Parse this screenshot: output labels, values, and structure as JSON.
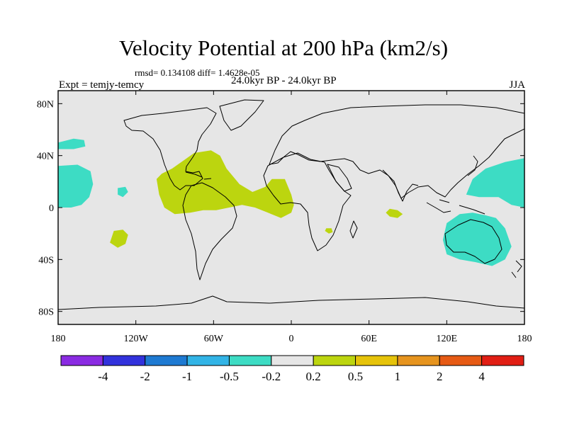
{
  "figure": {
    "title": "Velocity Potential at 200 hPa (km2/s)",
    "diagnostics": "rmsd= 0.134108 diff= 1.4628e-05",
    "period": "24.0kyr BP - 24.0kyr BP",
    "experiment": "Expt = temjy-temcy",
    "season": "JJA"
  },
  "map": {
    "projection": "cylindrical-equidistant",
    "lon_range": [
      -180,
      180
    ],
    "lat_range": [
      -90,
      90
    ],
    "lat_ticks": [
      {
        "value": 80,
        "label": "80N"
      },
      {
        "value": 40,
        "label": "40N"
      },
      {
        "value": 0,
        "label": "0"
      },
      {
        "value": -40,
        "label": "40S"
      },
      {
        "value": -80,
        "label": "80S"
      }
    ],
    "lon_ticks": [
      {
        "value": -180,
        "label": "180"
      },
      {
        "value": -120,
        "label": "120W"
      },
      {
        "value": -60,
        "label": "60W"
      },
      {
        "value": 0,
        "label": "0"
      },
      {
        "value": 60,
        "label": "60E"
      },
      {
        "value": 120,
        "label": "120E"
      },
      {
        "value": 180,
        "label": "180"
      }
    ],
    "background_color": "#e6e6e6",
    "coastline_color": "#000000",
    "anomaly_regions": [
      {
        "name": "N Pacific small",
        "sign": "negative",
        "color": "#3ddcc4",
        "outline": [
          [
            -180,
            50
          ],
          [
            -168,
            53
          ],
          [
            -160,
            52
          ],
          [
            -159,
            47
          ],
          [
            -168,
            45
          ],
          [
            -180,
            45
          ]
        ]
      },
      {
        "name": "E Pacific band",
        "sign": "negative",
        "color": "#3ddcc4",
        "outline": [
          [
            -180,
            32
          ],
          [
            -165,
            33
          ],
          [
            -155,
            28
          ],
          [
            -153,
            18
          ],
          [
            -156,
            8
          ],
          [
            -162,
            2
          ],
          [
            -170,
            0
          ],
          [
            -180,
            0
          ]
        ]
      },
      {
        "name": "central Pacific blob",
        "sign": "negative",
        "color": "#3ddcc4",
        "outline": [
          [
            -134,
            15
          ],
          [
            -128,
            16
          ],
          [
            -126,
            12
          ],
          [
            -130,
            8
          ],
          [
            -134,
            10
          ]
        ]
      },
      {
        "name": "Americas-Atlantic",
        "sign": "positive",
        "color": "#bcd50f",
        "outline": [
          [
            -100,
            26
          ],
          [
            -92,
            30
          ],
          [
            -75,
            42
          ],
          [
            -62,
            44
          ],
          [
            -55,
            40
          ],
          [
            -50,
            30
          ],
          [
            -40,
            18
          ],
          [
            -30,
            12
          ],
          [
            -20,
            16
          ],
          [
            -15,
            22
          ],
          [
            -5,
            22
          ],
          [
            0,
            10
          ],
          [
            2,
            2
          ],
          [
            0,
            -4
          ],
          [
            -8,
            -8
          ],
          [
            -18,
            -4
          ],
          [
            -28,
            0
          ],
          [
            -38,
            2
          ],
          [
            -48,
            0
          ],
          [
            -58,
            -2
          ],
          [
            -68,
            -2
          ],
          [
            -78,
            -4
          ],
          [
            -90,
            -5
          ],
          [
            -98,
            0
          ],
          [
            -102,
            10
          ],
          [
            -104,
            22
          ]
        ]
      },
      {
        "name": "Equatorial Indian Ocean",
        "sign": "positive",
        "color": "#bcd50f",
        "outline": [
          [
            76,
            -1
          ],
          [
            82,
            -2
          ],
          [
            86,
            -5
          ],
          [
            82,
            -8
          ],
          [
            76,
            -7
          ],
          [
            73,
            -4
          ]
        ]
      },
      {
        "name": "S Atlantic / SE Pacific",
        "sign": "positive",
        "color": "#bcd50f",
        "outline": [
          [
            -137,
            -18
          ],
          [
            -130,
            -17
          ],
          [
            -126,
            -21
          ],
          [
            -128,
            -28
          ],
          [
            -134,
            -31
          ],
          [
            -140,
            -27
          ]
        ]
      },
      {
        "name": "southern Africa",
        "sign": "positive",
        "color": "#bcd50f",
        "outline": [
          [
            27,
            -16
          ],
          [
            31,
            -16
          ],
          [
            32,
            -19
          ],
          [
            29,
            -20
          ],
          [
            26,
            -18
          ]
        ]
      },
      {
        "name": "Western Pacific",
        "sign": "negative",
        "color": "#3ddcc4",
        "outline": [
          [
            135,
            10
          ],
          [
            140,
            22
          ],
          [
            150,
            30
          ],
          [
            165,
            35
          ],
          [
            180,
            38
          ],
          [
            180,
            0
          ],
          [
            170,
            2
          ],
          [
            160,
            8
          ],
          [
            145,
            8
          ]
        ]
      },
      {
        "name": "Australia / Maritime",
        "sign": "negative",
        "color": "#3ddcc4",
        "outline": [
          [
            130,
            -5
          ],
          [
            140,
            -4
          ],
          [
            150,
            -6
          ],
          [
            158,
            -8
          ],
          [
            165,
            -16
          ],
          [
            170,
            -30
          ],
          [
            165,
            -40
          ],
          [
            155,
            -45
          ],
          [
            142,
            -42
          ],
          [
            130,
            -40
          ],
          [
            120,
            -36
          ],
          [
            117,
            -25
          ],
          [
            120,
            -12
          ]
        ]
      }
    ]
  },
  "colorbar": {
    "colors": [
      "#8a2be2",
      "#3232dc",
      "#1e7ad2",
      "#32b4e6",
      "#3ddcc4",
      "#e6e6e6",
      "#bcd50f",
      "#e6c30a",
      "#e6941e",
      "#e65a14",
      "#e11e14"
    ],
    "labels": [
      "-4",
      "-2",
      "-1",
      "-0.5",
      "-0.2",
      "0.2",
      "0.5",
      "1",
      "2",
      "4"
    ]
  }
}
